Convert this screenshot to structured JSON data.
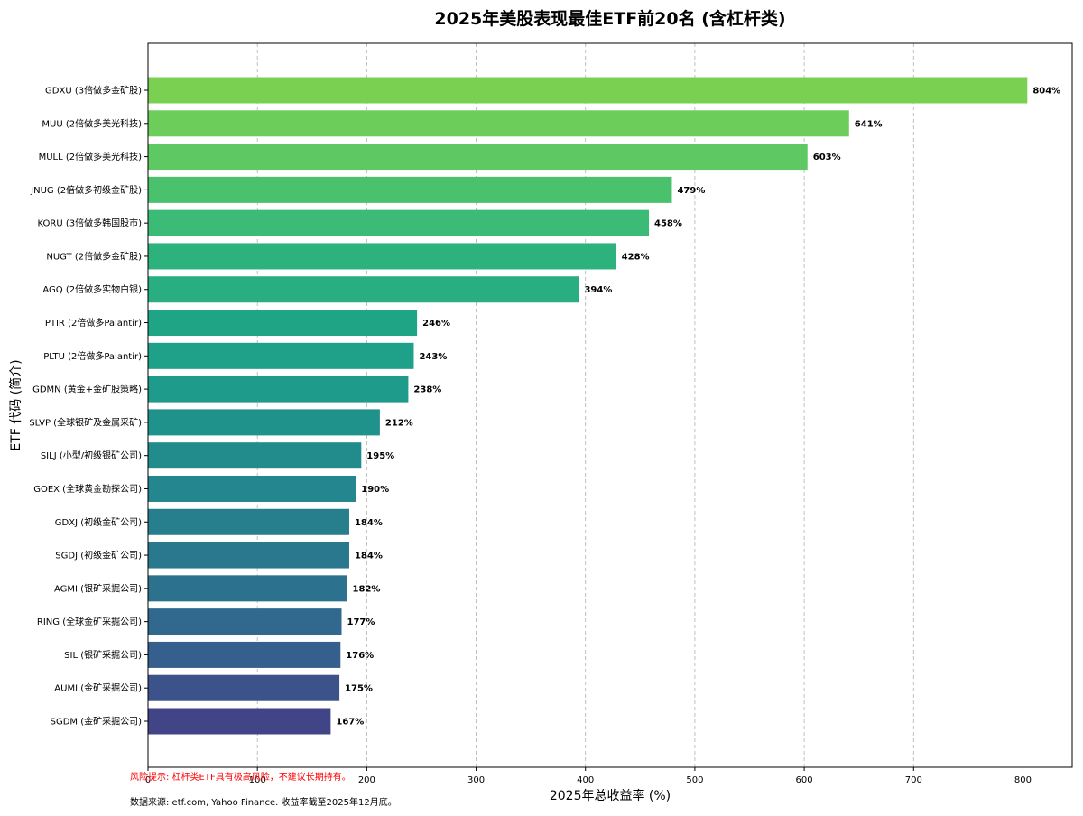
{
  "chart_data": {
    "type": "bar",
    "orientation": "horizontal",
    "title": "2025年美股表现最佳ETF前20名 (含杠杆类)",
    "xlabel": "2025年总收益率 (%)",
    "ylabel": "ETF 代码 (简介)",
    "xlim": [
      0,
      845
    ],
    "xticks": [
      0,
      100,
      200,
      300,
      400,
      500,
      600,
      700,
      800
    ],
    "grid": "x-dashed",
    "categories": [
      "GDXU (3倍做多金矿股)",
      "MUU (2倍做多美光科技)",
      "MULL (2倍做多美光科技)",
      "JNUG (2倍做多初级金矿股)",
      "KORU (3倍做多韩国股市)",
      "NUGT (2倍做多金矿股)",
      "AGQ (2倍做多实物白银)",
      "PTIR (2倍做多Palantir)",
      "PLTU (2倍做多Palantir)",
      "GDMN (黄金+金矿股策略)",
      "SLVP (全球银矿及金属采矿)",
      "SILJ (小型/初级银矿公司)",
      "GOEX (全球黄金勘探公司)",
      "GDXJ (初级金矿公司)",
      "SGDJ (初级金矿公司)",
      "AGMI (银矿采掘公司)",
      "RING (全球金矿采掘公司)",
      "SIL (银矿采掘公司)",
      "AUMI (金矿采掘公司)",
      "SGDM (金矿采掘公司)"
    ],
    "values": [
      804,
      641,
      603,
      479,
      458,
      428,
      394,
      246,
      243,
      238,
      212,
      195,
      190,
      184,
      184,
      182,
      177,
      176,
      175,
      167
    ],
    "data_labels": [
      "804%",
      "641%",
      "603%",
      "479%",
      "458%",
      "428%",
      "394%",
      "246%",
      "243%",
      "238%",
      "212%",
      "195%",
      "190%",
      "184%",
      "184%",
      "182%",
      "177%",
      "176%",
      "175%",
      "167%"
    ],
    "colors": [
      "#7ad151",
      "#6ccd5a",
      "#5ec962",
      "#4ac16d",
      "#3bbb75",
      "#2db27d",
      "#28ae80",
      "#20a486",
      "#1fa088",
      "#1e9b8a",
      "#20928c",
      "#228c8d",
      "#24868e",
      "#277f8e",
      "#2a788e",
      "#2c728e",
      "#31688e",
      "#355f8d",
      "#3b528b",
      "#414487"
    ]
  },
  "footnotes": {
    "risk": "风险提示: 杠杆类ETF具有极高风险，不建议长期持有。",
    "source": "数据来源: etf.com, Yahoo Finance. 收益率截至2025年12月底。"
  }
}
